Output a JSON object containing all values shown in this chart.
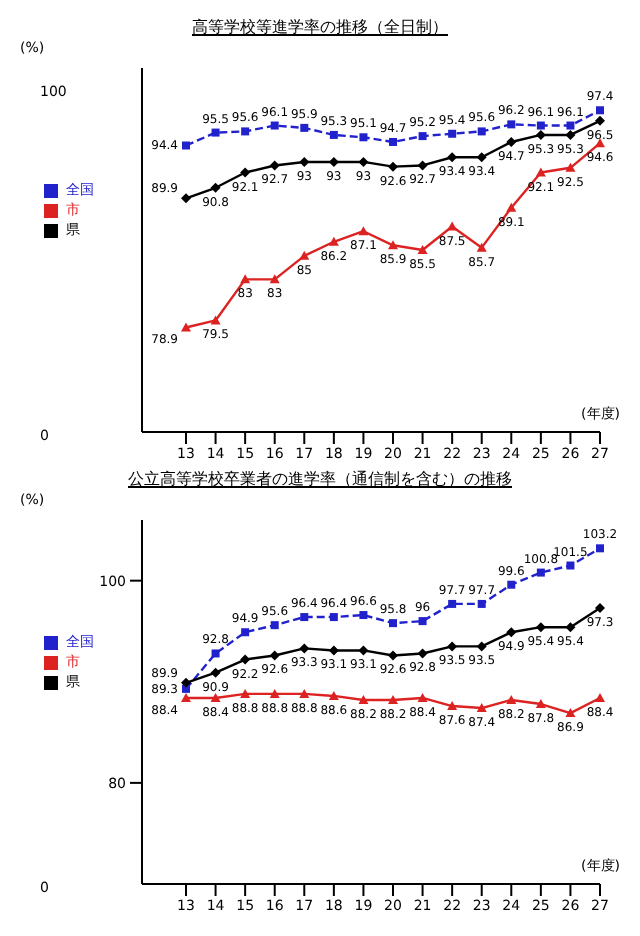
{
  "chart_data": [
    {
      "type": "line",
      "title": "高等学校等進学率の推移（全日制）",
      "xlabel": "(年度)",
      "ylabel": "(%)",
      "categories": [
        "13",
        "14",
        "15",
        "16",
        "17",
        "18",
        "19",
        "20",
        "21",
        "22",
        "23",
        "24",
        "25",
        "26",
        "27"
      ],
      "series": [
        {
          "name": "全国",
          "color": "#2222cc",
          "line_style": "dashed",
          "marker": "square",
          "values": [
            94.4,
            95.5,
            95.6,
            96.1,
            95.9,
            95.3,
            95.1,
            94.7,
            95.2,
            95.4,
            95.6,
            96.2,
            96.1,
            96.1,
            97.4
          ]
        },
        {
          "name": "県",
          "color": "#000000",
          "line_style": "solid",
          "marker": "diamond",
          "values": [
            89.9,
            90.8,
            92.1,
            92.7,
            93.0,
            93.0,
            93.0,
            92.6,
            92.7,
            93.4,
            93.4,
            94.7,
            95.3,
            95.3,
            96.5
          ]
        },
        {
          "name": "市",
          "color": "#dd2222",
          "line_style": "solid",
          "marker": "triangle",
          "values": [
            78.9,
            79.5,
            83.0,
            83.0,
            85.0,
            86.2,
            87.1,
            85.9,
            85.5,
            87.5,
            85.7,
            89.1,
            92.1,
            92.5,
            94.6
          ]
        }
      ],
      "ylim": [
        70,
        101
      ],
      "tick_labels": "x",
      "annotations": [
        "100",
        "0"
      ],
      "grid": false,
      "legend": "left",
      "data_labels": true
    },
    {
      "type": "line",
      "title": "公立高等学校卒業者の進学率（通信制を含む）の推移",
      "xlabel": "(年度)",
      "ylabel": "(%)",
      "categories": [
        "13",
        "14",
        "15",
        "16",
        "17",
        "18",
        "19",
        "20",
        "21",
        "22",
        "23",
        "24",
        "25",
        "26",
        "27"
      ],
      "series": [
        {
          "name": "全国",
          "color": "#2222cc",
          "line_style": "dashed",
          "marker": "square",
          "values": [
            89.3,
            92.8,
            94.9,
            95.6,
            96.4,
            96.4,
            96.6,
            95.8,
            96.0,
            97.7,
            97.7,
            99.6,
            100.8,
            101.5,
            103.2
          ]
        },
        {
          "name": "県",
          "color": "#000000",
          "line_style": "solid",
          "marker": "diamond",
          "values": [
            89.9,
            90.9,
            92.2,
            92.6,
            93.3,
            93.1,
            93.1,
            92.6,
            92.8,
            93.5,
            93.5,
            94.9,
            95.4,
            95.4,
            97.3
          ]
        },
        {
          "name": "市",
          "color": "#dd2222",
          "line_style": "solid",
          "marker": "triangle",
          "values": [
            88.4,
            88.4,
            88.8,
            88.8,
            88.8,
            88.6,
            88.2,
            88.2,
            88.4,
            87.6,
            87.4,
            88.2,
            87.8,
            86.9,
            88.4
          ]
        }
      ],
      "ylim": [
        70,
        106
      ],
      "yticks": [
        80,
        100
      ],
      "annotations": [
        "0"
      ],
      "grid": false,
      "legend": "left",
      "data_labels": true
    }
  ]
}
